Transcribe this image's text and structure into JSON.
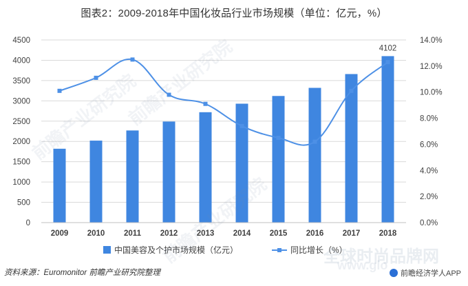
{
  "title": "图表2：2009-2018年中国化妆品行业市场规模（单位：亿元，%）",
  "source_label": "资料来源：",
  "source_text": "Euromonitor 前瞻产业研究院整理",
  "brand": "前瞻经济学人APP",
  "watermarks": [
    "前瞻产业研究院",
    "前瞻产业研究院",
    "前瞻产业研究院",
    "全球时尚品牌网",
    "www.glo"
  ],
  "colors": {
    "bar": "#3f86e0",
    "line": "#4d90e6",
    "grid": "#d9d9d9",
    "axis_text": "#404040"
  },
  "chart_data": {
    "type": "bar",
    "categories": [
      "2009",
      "2010",
      "2011",
      "2012",
      "2013",
      "2014",
      "2015",
      "2016",
      "2017",
      "2018"
    ],
    "series": [
      {
        "name": "中国美容及个护市场规模（亿元）",
        "type": "bar",
        "axis": "left",
        "values": [
          1820,
          2020,
          2270,
          2490,
          2720,
          2930,
          3120,
          3320,
          3660,
          4102
        ]
      },
      {
        "name": "同比增长（%）",
        "type": "line",
        "axis": "right",
        "marker": "square",
        "values": [
          10.1,
          11.1,
          12.5,
          9.8,
          9.1,
          7.4,
          6.5,
          6.2,
          10.1,
          12.3
        ]
      }
    ],
    "data_labels": [
      {
        "category": "2018",
        "series": "中国美容及个护市场规模（亿元）",
        "text": "4102"
      }
    ],
    "y_left": {
      "min": 0,
      "max": 4500,
      "ticks": [
        "0",
        "500",
        "1000",
        "1500",
        "2000",
        "2500",
        "3000",
        "3500",
        "4000",
        "4500"
      ]
    },
    "y_right": {
      "min": 0,
      "max": 14,
      "ticks": [
        "0.0%",
        "2.0%",
        "4.0%",
        "6.0%",
        "8.0%",
        "10.0%",
        "12.0%",
        "14.0%"
      ]
    },
    "grid": true,
    "legend_position": "bottom"
  }
}
